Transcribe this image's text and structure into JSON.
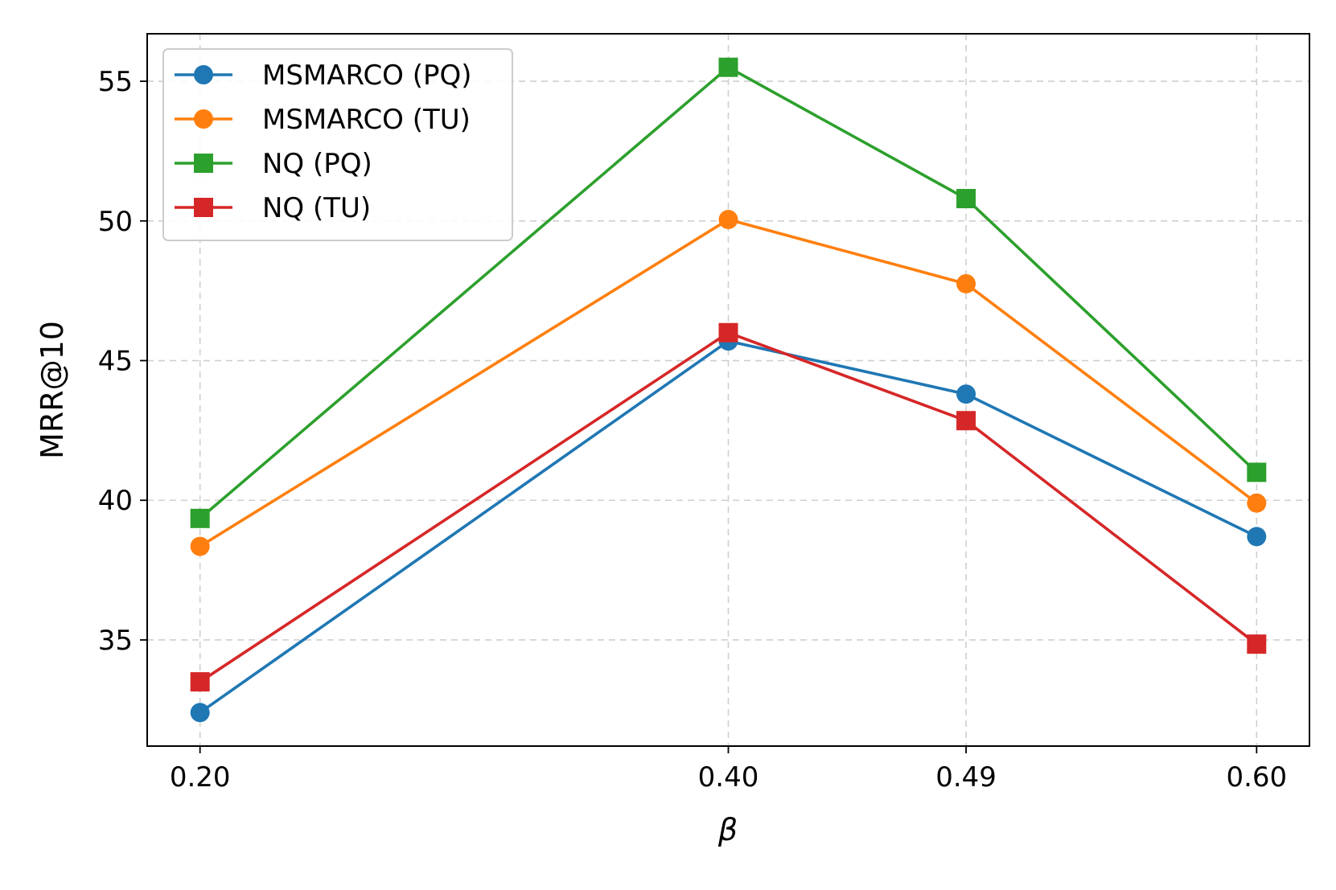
{
  "chart_data": {
    "type": "line",
    "title": "",
    "xlabel": "β",
    "ylabel": "MRR@10",
    "x": [
      0.2,
      0.4,
      0.49,
      0.6
    ],
    "x_tick_labels": [
      "0.20",
      "0.40",
      "0.49",
      "0.60"
    ],
    "y_ticks": [
      35,
      40,
      45,
      50,
      55
    ],
    "y_tick_labels": [
      "35",
      "40",
      "45",
      "50",
      "55"
    ],
    "xlim": [
      0.18,
      0.62
    ],
    "ylim": [
      31.2,
      56.7
    ],
    "grid": true,
    "legend_position": "top-left",
    "series": [
      {
        "name": "MSMARCO (PQ)",
        "values": [
          32.4,
          45.7,
          43.8,
          38.7
        ],
        "color": "#1f77b4",
        "marker": "circle"
      },
      {
        "name": "MSMARCO (TU)",
        "values": [
          38.35,
          50.05,
          47.75,
          39.9
        ],
        "color": "#ff7f0e",
        "marker": "circle"
      },
      {
        "name": "NQ (PQ)",
        "values": [
          39.35,
          55.5,
          50.8,
          41.0
        ],
        "color": "#2ca02c",
        "marker": "square"
      },
      {
        "name": "NQ (TU)",
        "values": [
          33.5,
          46.0,
          42.85,
          34.85
        ],
        "color": "#d62728",
        "marker": "square"
      }
    ]
  }
}
